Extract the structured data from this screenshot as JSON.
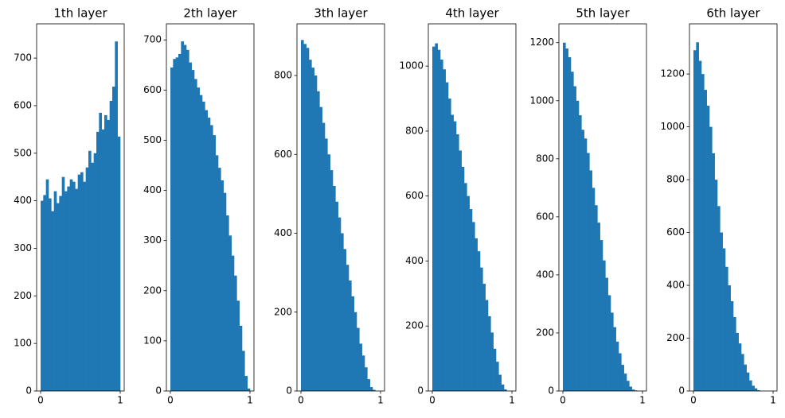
{
  "chart_data": [
    {
      "type": "histogram",
      "title": "1th layer",
      "color": "#1f77b4",
      "bins": [
        0,
        0.0333,
        0.0667,
        0.1,
        0.1333,
        0.1667,
        0.2,
        0.2333,
        0.2667,
        0.3,
        0.3333,
        0.3667,
        0.4,
        0.4333,
        0.4667,
        0.5,
        0.5333,
        0.5667,
        0.6,
        0.6333,
        0.6667,
        0.7,
        0.7333,
        0.7667,
        0.8,
        0.8333,
        0.8667,
        0.9,
        0.9333,
        0.9667,
        1
      ],
      "values": [
        400,
        412,
        445,
        405,
        378,
        420,
        395,
        410,
        450,
        420,
        430,
        445,
        440,
        425,
        455,
        460,
        440,
        470,
        505,
        480,
        500,
        545,
        585,
        550,
        580,
        570,
        610,
        640,
        735,
        535
      ],
      "xlim": [
        -0.05,
        1.05
      ],
      "xticks": [
        0,
        1
      ],
      "ylim": [
        0,
        772
      ],
      "yticks": [
        0,
        100,
        200,
        300,
        400,
        500,
        600,
        700
      ]
    },
    {
      "type": "histogram",
      "title": "2th layer",
      "color": "#1f77b4",
      "bins": [
        0,
        0.0333,
        0.0667,
        0.1,
        0.1333,
        0.1667,
        0.2,
        0.2333,
        0.2667,
        0.3,
        0.3333,
        0.3667,
        0.4,
        0.4333,
        0.4667,
        0.5,
        0.5333,
        0.5667,
        0.6,
        0.6333,
        0.6667,
        0.7,
        0.7333,
        0.7667,
        0.8,
        0.8333,
        0.8667,
        0.9,
        0.9333,
        0.9667,
        1
      ],
      "values": [
        645,
        662,
        665,
        672,
        697,
        690,
        680,
        655,
        640,
        622,
        605,
        590,
        577,
        560,
        545,
        530,
        510,
        470,
        445,
        420,
        395,
        350,
        310,
        270,
        230,
        180,
        130,
        80,
        30,
        5
      ],
      "xlim": [
        -0.05,
        1.05
      ],
      "xticks": [
        0,
        1
      ],
      "ylim": [
        0,
        732
      ],
      "yticks": [
        0,
        100,
        200,
        300,
        400,
        500,
        600,
        700
      ]
    },
    {
      "type": "histogram",
      "title": "3th layer",
      "color": "#1f77b4",
      "bins": [
        0,
        0.0333,
        0.0667,
        0.1,
        0.1333,
        0.1667,
        0.2,
        0.2333,
        0.2667,
        0.3,
        0.3333,
        0.3667,
        0.4,
        0.4333,
        0.4667,
        0.5,
        0.5333,
        0.5667,
        0.6,
        0.6333,
        0.6667,
        0.7,
        0.7333,
        0.7667,
        0.8,
        0.8333,
        0.8667,
        0.9,
        0.9333,
        0.9667,
        1
      ],
      "values": [
        890,
        880,
        870,
        840,
        820,
        800,
        760,
        720,
        680,
        640,
        600,
        560,
        520,
        480,
        440,
        400,
        360,
        320,
        280,
        240,
        200,
        160,
        120,
        90,
        60,
        30,
        10,
        3,
        0,
        0
      ],
      "xlim": [
        -0.05,
        1.05
      ],
      "xticks": [
        0,
        1
      ],
      "ylim": [
        0,
        931
      ],
      "yticks": [
        0,
        200,
        400,
        600,
        800
      ]
    },
    {
      "type": "histogram",
      "title": "4th layer",
      "color": "#1f77b4",
      "bins": [
        0,
        0.0333,
        0.0667,
        0.1,
        0.1333,
        0.1667,
        0.2,
        0.2333,
        0.2667,
        0.3,
        0.3333,
        0.3667,
        0.4,
        0.4333,
        0.4667,
        0.5,
        0.5333,
        0.5667,
        0.6,
        0.6333,
        0.6667,
        0.7,
        0.7333,
        0.7667,
        0.8,
        0.8333,
        0.8667,
        0.9,
        0.9333,
        0.9667,
        1
      ],
      "values": [
        1060,
        1070,
        1050,
        1020,
        990,
        950,
        900,
        850,
        830,
        790,
        740,
        690,
        640,
        600,
        560,
        520,
        470,
        430,
        380,
        330,
        280,
        230,
        180,
        130,
        90,
        50,
        20,
        5,
        0,
        0
      ],
      "xlim": [
        -0.05,
        1.05
      ],
      "xticks": [
        0,
        1
      ],
      "ylim": [
        0,
        1130
      ],
      "yticks": [
        0,
        200,
        400,
        600,
        800,
        1000
      ]
    },
    {
      "type": "histogram",
      "title": "5th layer",
      "color": "#1f77b4",
      "bins": [
        0,
        0.0333,
        0.0667,
        0.1,
        0.1333,
        0.1667,
        0.2,
        0.2333,
        0.2667,
        0.3,
        0.3333,
        0.3667,
        0.4,
        0.4333,
        0.4667,
        0.5,
        0.5333,
        0.5667,
        0.6,
        0.6333,
        0.6667,
        0.7,
        0.7333,
        0.7667,
        0.8,
        0.8333,
        0.8667,
        0.9,
        0.9333,
        0.9667,
        1
      ],
      "values": [
        1200,
        1180,
        1150,
        1100,
        1050,
        1000,
        950,
        900,
        870,
        820,
        760,
        700,
        640,
        580,
        520,
        450,
        390,
        330,
        270,
        220,
        170,
        130,
        90,
        60,
        35,
        15,
        5,
        2,
        0,
        0
      ],
      "xlim": [
        -0.05,
        1.05
      ],
      "xticks": [
        0,
        1
      ],
      "ylim": [
        0,
        1265
      ],
      "yticks": [
        0,
        200,
        400,
        600,
        800,
        1000,
        1200
      ]
    },
    {
      "type": "histogram",
      "title": "6th layer",
      "color": "#1f77b4",
      "bins": [
        0,
        0.0333,
        0.0667,
        0.1,
        0.1333,
        0.1667,
        0.2,
        0.2333,
        0.2667,
        0.3,
        0.3333,
        0.3667,
        0.4,
        0.4333,
        0.4667,
        0.5,
        0.5333,
        0.5667,
        0.6,
        0.6333,
        0.6667,
        0.7,
        0.7333,
        0.7667,
        0.8,
        0.8333,
        0.8667,
        0.9,
        0.9333,
        0.9667,
        1
      ],
      "values": [
        1290,
        1320,
        1250,
        1200,
        1140,
        1080,
        1000,
        900,
        800,
        700,
        600,
        540,
        470,
        400,
        340,
        280,
        220,
        180,
        140,
        100,
        70,
        40,
        20,
        10,
        3,
        0,
        0,
        0,
        0,
        0
      ],
      "xlim": [
        -0.05,
        1.05
      ],
      "xticks": [
        0,
        1
      ],
      "ylim": [
        0,
        1390
      ],
      "yticks": [
        0,
        200,
        400,
        600,
        800,
        1000,
        1200
      ]
    }
  ]
}
